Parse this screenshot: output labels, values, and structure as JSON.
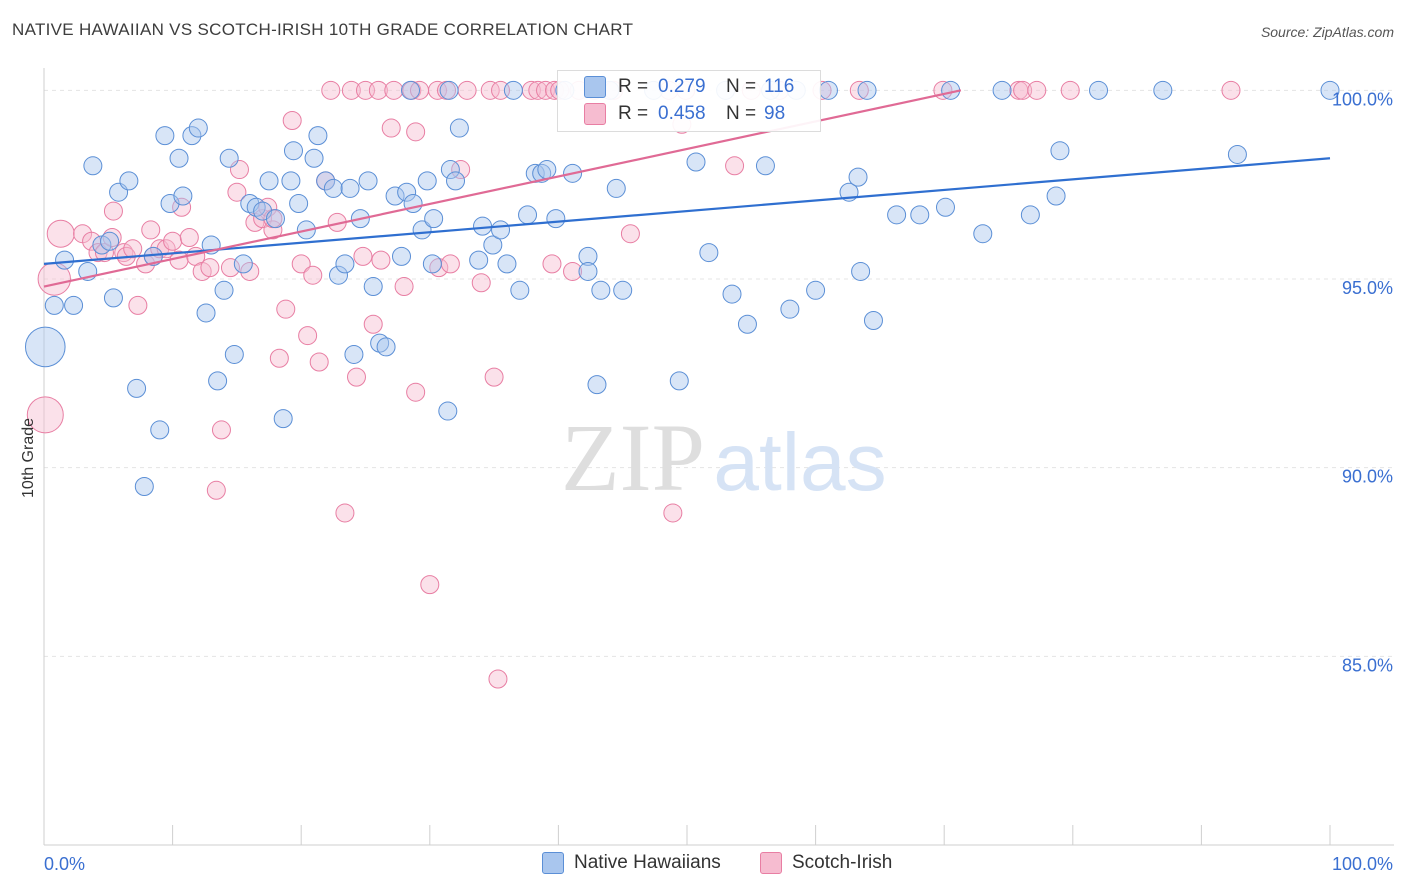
{
  "title": "NATIVE HAWAIIAN VS SCOTCH-IRISH 10TH GRADE CORRELATION CHART",
  "source": "Source: ZipAtlas.com",
  "watermark": {
    "zip": "ZIP",
    "atlas": "atlas"
  },
  "legend_stats": {
    "rows": [
      {
        "r_label": "R =",
        "r_value": "0.279",
        "n_label": "N =",
        "n_value": "116"
      },
      {
        "r_label": "R =",
        "r_value": "0.458",
        "n_label": "N =",
        "n_value": "98"
      }
    ]
  },
  "colors": {
    "blue_fill": "#a9c6ee",
    "blue_stroke": "#5b8fd6",
    "blue_line": "#2f6fd0",
    "pink_fill": "#f6bcd0",
    "pink_stroke": "#e87ea3",
    "pink_line": "#e06a95",
    "axis_label": "#3a6fd1",
    "grid": "#e4e4e4"
  },
  "chart_data": {
    "type": "scatter",
    "title": "NATIVE HAWAIIAN VS SCOTCH-IRISH 10TH GRADE CORRELATION CHART",
    "xlabel": "",
    "ylabel": "10th Grade",
    "xlim": [
      0,
      100
    ],
    "ylim": [
      80.0,
      100.3
    ],
    "x_tick_labels": [
      "0.0%",
      "100.0%"
    ],
    "y_ticks": [
      85,
      90,
      95,
      100
    ],
    "y_tick_labels": [
      "85.0%",
      "90.0%",
      "95.0%",
      "100.0%"
    ],
    "grid": true,
    "series": [
      {
        "name": "Native Hawaiians",
        "color": "blue",
        "R": 0.279,
        "N": 116,
        "trend": {
          "x0": 0,
          "y0": 95.4,
          "x1": 100,
          "y1": 98.2
        },
        "points": [
          [
            0.1,
            93.2,
            2.2
          ],
          [
            0.8,
            94.3,
            1
          ],
          [
            1.6,
            95.5,
            1
          ],
          [
            2.3,
            94.3,
            1
          ],
          [
            3.4,
            95.2,
            1
          ],
          [
            3.8,
            98.0,
            1
          ],
          [
            4.5,
            95.9,
            1
          ],
          [
            5.1,
            96.0,
            1
          ],
          [
            5.4,
            94.5,
            1
          ],
          [
            5.8,
            97.3,
            1
          ],
          [
            6.6,
            97.6,
            1
          ],
          [
            7.2,
            92.1,
            1
          ],
          [
            7.8,
            89.5,
            1
          ],
          [
            8.5,
            95.6,
            1
          ],
          [
            9.0,
            91.0,
            1
          ],
          [
            9.4,
            98.8,
            1
          ],
          [
            9.8,
            97.0,
            1
          ],
          [
            10.5,
            98.2,
            1
          ],
          [
            10.8,
            97.2,
            1
          ],
          [
            11.5,
            98.8,
            1
          ],
          [
            12.0,
            99.0,
            1
          ],
          [
            12.6,
            94.1,
            1
          ],
          [
            13.0,
            95.9,
            1
          ],
          [
            13.5,
            92.3,
            1
          ],
          [
            14.0,
            94.7,
            1
          ],
          [
            14.4,
            98.2,
            1
          ],
          [
            14.8,
            93.0,
            1
          ],
          [
            15.5,
            95.4,
            1
          ],
          [
            16.0,
            97.0,
            1
          ],
          [
            16.5,
            96.9,
            1
          ],
          [
            17.0,
            96.8,
            1
          ],
          [
            17.5,
            97.6,
            1
          ],
          [
            18.0,
            96.6,
            1
          ],
          [
            18.6,
            91.3,
            1
          ],
          [
            19.2,
            97.6,
            1
          ],
          [
            19.4,
            98.4,
            1
          ],
          [
            19.8,
            97.0,
            1
          ],
          [
            20.4,
            96.3,
            1
          ],
          [
            21.0,
            98.2,
            1
          ],
          [
            21.3,
            98.8,
            1
          ],
          [
            21.9,
            97.6,
            1
          ],
          [
            22.5,
            97.4,
            1
          ],
          [
            22.9,
            95.1,
            1
          ],
          [
            23.4,
            95.4,
            1
          ],
          [
            23.8,
            97.4,
            1
          ],
          [
            24.1,
            93.0,
            1
          ],
          [
            24.6,
            96.6,
            1
          ],
          [
            25.2,
            97.6,
            1
          ],
          [
            25.6,
            94.8,
            1
          ],
          [
            26.1,
            93.3,
            1
          ],
          [
            26.6,
            93.2,
            1
          ],
          [
            27.3,
            97.2,
            1
          ],
          [
            27.8,
            95.6,
            1
          ],
          [
            28.2,
            97.3,
            1
          ],
          [
            28.7,
            97.0,
            1
          ],
          [
            29.4,
            96.3,
            1
          ],
          [
            29.8,
            97.6,
            1
          ],
          [
            30.2,
            95.4,
            1
          ],
          [
            30.3,
            96.6,
            1
          ],
          [
            31.4,
            91.5,
            1
          ],
          [
            31.6,
            97.9,
            1
          ],
          [
            32.0,
            97.6,
            1
          ],
          [
            32.3,
            99.0,
            1
          ],
          [
            33.8,
            95.5,
            1
          ],
          [
            34.1,
            96.4,
            1
          ],
          [
            34.9,
            95.9,
            1
          ],
          [
            35.5,
            96.3,
            1
          ],
          [
            36.0,
            95.4,
            1
          ],
          [
            37.0,
            94.7,
            1
          ],
          [
            37.6,
            96.7,
            1
          ],
          [
            38.2,
            97.8,
            1
          ],
          [
            38.7,
            97.8,
            1
          ],
          [
            39.1,
            97.9,
            1
          ],
          [
            39.8,
            96.6,
            1
          ],
          [
            41.1,
            97.8,
            1
          ],
          [
            42.3,
            95.6,
            1
          ],
          [
            42.3,
            95.2,
            1
          ],
          [
            43.0,
            92.2,
            1
          ],
          [
            43.3,
            94.7,
            1
          ],
          [
            44.5,
            97.4,
            1
          ],
          [
            45.0,
            94.7,
            1
          ],
          [
            47.4,
            100.0,
            1
          ],
          [
            49.4,
            92.3,
            1
          ],
          [
            50.7,
            98.1,
            1
          ],
          [
            51.7,
            95.7,
            1
          ],
          [
            53.5,
            94.6,
            1
          ],
          [
            54.7,
            93.8,
            1
          ],
          [
            56.1,
            98.0,
            1
          ],
          [
            58.0,
            94.2,
            1
          ],
          [
            58.5,
            100.0,
            1
          ],
          [
            60.0,
            94.7,
            1
          ],
          [
            62.6,
            97.3,
            1
          ],
          [
            63.3,
            97.7,
            1
          ],
          [
            63.5,
            95.2,
            1
          ],
          [
            64.0,
            100.0,
            1
          ],
          [
            64.5,
            93.9,
            1
          ],
          [
            66.3,
            96.7,
            1
          ],
          [
            68.1,
            96.7,
            1
          ],
          [
            70.1,
            96.9,
            1
          ],
          [
            73.0,
            96.2,
            1
          ],
          [
            74.5,
            100.0,
            1
          ],
          [
            76.7,
            96.7,
            1
          ],
          [
            78.7,
            97.2,
            1
          ],
          [
            79.0,
            98.4,
            1
          ],
          [
            92.8,
            98.3,
            1
          ],
          [
            100.0,
            100.0,
            1
          ],
          [
            28.5,
            100.0,
            1
          ],
          [
            31.5,
            100.0,
            1
          ],
          [
            36.5,
            100.0,
            1
          ],
          [
            40.5,
            100.0,
            1
          ],
          [
            44.0,
            100.0,
            1
          ],
          [
            53.0,
            100.0,
            1
          ],
          [
            56.5,
            100.0,
            1
          ],
          [
            61.0,
            100.0,
            1
          ],
          [
            70.5,
            100.0,
            1
          ],
          [
            82.0,
            100.0,
            1
          ],
          [
            87.0,
            100.0,
            1
          ]
        ]
      },
      {
        "name": "Scotch-Irish",
        "color": "pink",
        "R": 0.458,
        "N": 98,
        "trend": {
          "x0": 0,
          "y0": 94.8,
          "x1": 71.3,
          "y1": 100.0
        },
        "points": [
          [
            0.1,
            91.4,
            2.0
          ],
          [
            0.8,
            95.0,
            1.8
          ],
          [
            1.3,
            96.2,
            1.5
          ],
          [
            3.0,
            96.2,
            1
          ],
          [
            3.7,
            96.0,
            1
          ],
          [
            4.2,
            95.7,
            1
          ],
          [
            4.7,
            95.7,
            1
          ],
          [
            5.3,
            96.1,
            1
          ],
          [
            5.4,
            96.8,
            1
          ],
          [
            6.2,
            95.7,
            1
          ],
          [
            6.4,
            95.6,
            1
          ],
          [
            6.9,
            95.8,
            1
          ],
          [
            7.3,
            94.3,
            1
          ],
          [
            7.9,
            95.4,
            1
          ],
          [
            8.3,
            96.3,
            1
          ],
          [
            8.5,
            95.6,
            1
          ],
          [
            9.0,
            95.8,
            1
          ],
          [
            9.5,
            95.8,
            1
          ],
          [
            10.0,
            96.0,
            1
          ],
          [
            10.5,
            95.5,
            1
          ],
          [
            10.7,
            96.9,
            1
          ],
          [
            11.3,
            96.1,
            1
          ],
          [
            11.8,
            95.6,
            1
          ],
          [
            12.3,
            95.2,
            1
          ],
          [
            12.9,
            95.3,
            1
          ],
          [
            13.4,
            89.4,
            1
          ],
          [
            13.8,
            91.0,
            1
          ],
          [
            14.5,
            95.3,
            1
          ],
          [
            15.0,
            97.3,
            1
          ],
          [
            15.2,
            97.9,
            1
          ],
          [
            16.0,
            95.2,
            1
          ],
          [
            16.4,
            96.5,
            1
          ],
          [
            17.0,
            96.6,
            1
          ],
          [
            17.4,
            96.9,
            1
          ],
          [
            17.8,
            96.3,
            1
          ],
          [
            17.8,
            96.6,
            1
          ],
          [
            18.3,
            92.9,
            1
          ],
          [
            18.8,
            94.2,
            1
          ],
          [
            19.3,
            99.2,
            1
          ],
          [
            20.0,
            95.4,
            1
          ],
          [
            20.5,
            93.5,
            1
          ],
          [
            20.9,
            95.1,
            1
          ],
          [
            21.4,
            92.8,
            1
          ],
          [
            21.9,
            97.6,
            1
          ],
          [
            22.8,
            96.5,
            1
          ],
          [
            23.4,
            88.8,
            1
          ],
          [
            24.3,
            92.4,
            1
          ],
          [
            24.8,
            95.6,
            1
          ],
          [
            25.6,
            93.8,
            1
          ],
          [
            26.2,
            95.5,
            1
          ],
          [
            27.0,
            99.0,
            1
          ],
          [
            28.0,
            94.8,
            1
          ],
          [
            28.9,
            92.0,
            1
          ],
          [
            28.9,
            98.9,
            1
          ],
          [
            30.0,
            86.9,
            1
          ],
          [
            30.7,
            95.3,
            1
          ],
          [
            31.6,
            95.4,
            1
          ],
          [
            32.4,
            97.9,
            1
          ],
          [
            34.0,
            94.9,
            1
          ],
          [
            35.0,
            92.4,
            1
          ],
          [
            35.3,
            84.4,
            1
          ],
          [
            39.5,
            95.4,
            1
          ],
          [
            41.1,
            95.2,
            1
          ],
          [
            45.6,
            96.2,
            1
          ],
          [
            48.9,
            88.8,
            1
          ],
          [
            49.6,
            99.1,
            1
          ],
          [
            53.7,
            98.0,
            1
          ],
          [
            22.3,
            100.0,
            1
          ],
          [
            23.9,
            100.0,
            1
          ],
          [
            25.0,
            100.0,
            1
          ],
          [
            26.0,
            100.0,
            1
          ],
          [
            27.2,
            100.0,
            1
          ],
          [
            28.6,
            100.0,
            1
          ],
          [
            29.2,
            100.0,
            1
          ],
          [
            30.6,
            100.0,
            1
          ],
          [
            31.3,
            100.0,
            1
          ],
          [
            32.9,
            100.0,
            1
          ],
          [
            34.7,
            100.0,
            1
          ],
          [
            35.5,
            100.0,
            1
          ],
          [
            37.9,
            100.0,
            1
          ],
          [
            38.4,
            100.0,
            1
          ],
          [
            39.0,
            100.0,
            1
          ],
          [
            39.7,
            100.0,
            1
          ],
          [
            40.1,
            100.0,
            1
          ],
          [
            41.6,
            100.0,
            1
          ],
          [
            42.8,
            100.0,
            1
          ],
          [
            44.3,
            100.0,
            1
          ],
          [
            48.6,
            100.0,
            1
          ],
          [
            49.9,
            100.0,
            1
          ],
          [
            55.0,
            100.0,
            1
          ],
          [
            57.2,
            100.0,
            1
          ],
          [
            60.5,
            100.0,
            1
          ],
          [
            63.4,
            100.0,
            1
          ],
          [
            69.9,
            100.0,
            1
          ],
          [
            75.8,
            100.0,
            1
          ],
          [
            76.1,
            100.0,
            1
          ],
          [
            77.2,
            100.0,
            1
          ],
          [
            79.8,
            100.0,
            1
          ],
          [
            92.3,
            100.0,
            1
          ]
        ]
      }
    ]
  }
}
